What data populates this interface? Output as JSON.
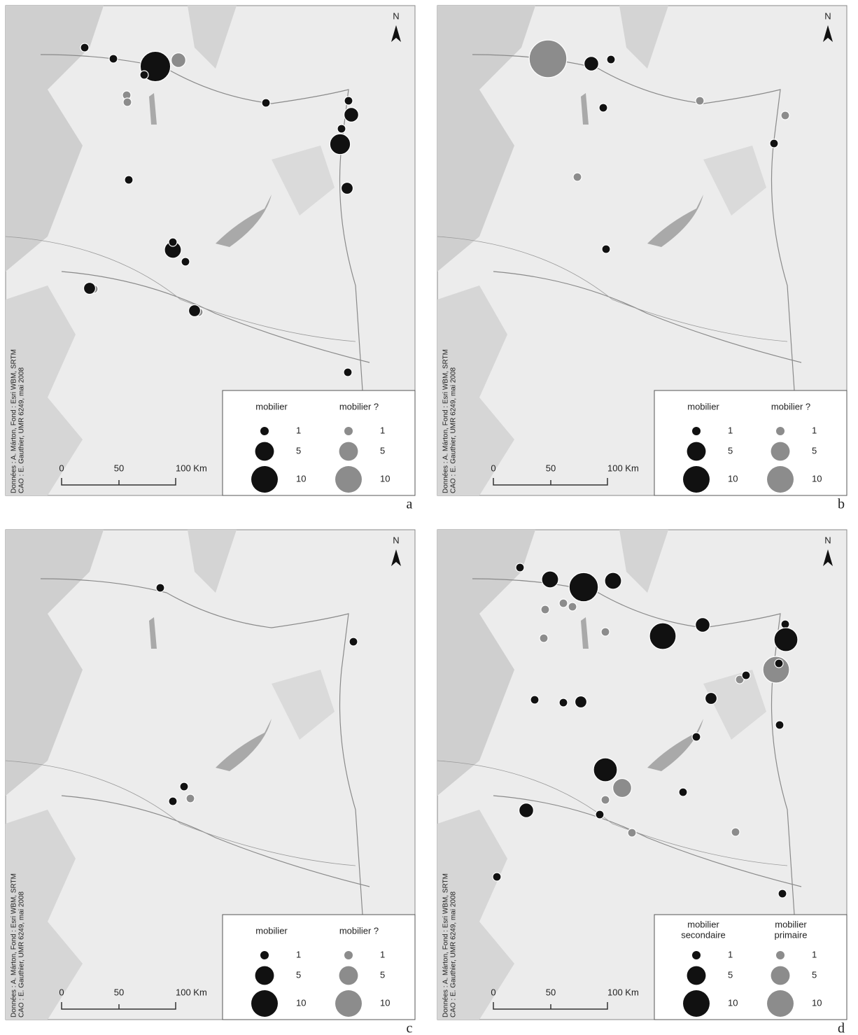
{
  "panels": [
    {
      "letter": "a",
      "north": "N",
      "credit": [
        "Données : A. Márton, Fond : Esri WBM, SRTM",
        "CAO : E. Gauthier, UMR 6249, mai 2008"
      ],
      "scale": [
        "0",
        "50",
        "100 Km"
      ],
      "legend": {
        "headings": [
          [
            "mobilier"
          ],
          [
            "mobilier ?"
          ]
        ],
        "sizes": [
          1,
          5,
          10
        ]
      },
      "sites": {
        "black": [
          1,
          1,
          13,
          1,
          1,
          1,
          3,
          1,
          6,
          2,
          1,
          4,
          1,
          1,
          2,
          2,
          1
        ],
        "grey": [
          3,
          1,
          1,
          1,
          1,
          1,
          1
        ]
      }
    },
    {
      "letter": "b",
      "north": "N",
      "credit": [
        "Données : A. Márton, Fond : Esri WBM, SRTM",
        "CAO : E. Gauthier, UMR 6249, mai 2008"
      ],
      "scale": [
        "0",
        "50",
        "100 Km"
      ],
      "legend": {
        "headings": [
          [
            "mobilier"
          ],
          [
            "mobilier ?"
          ]
        ],
        "sizes": [
          1,
          5,
          10
        ]
      },
      "sites": {
        "black": [
          3,
          1,
          1,
          1,
          1
        ],
        "grey": [
          20,
          1,
          1,
          1
        ]
      }
    },
    {
      "letter": "c",
      "north": "N",
      "credit": [
        "Données : A. Márton, Fond : Esri WBM, SRTM",
        "CAO : E. Gauthier, UMR 6249, mai 2008"
      ],
      "scale": [
        "0",
        "50",
        "100 Km"
      ],
      "legend": {
        "headings": [
          [
            "mobilier"
          ],
          [
            "mobilier ?"
          ]
        ],
        "sizes": [
          1,
          5,
          10
        ]
      },
      "sites": {
        "black": [
          1,
          1,
          1,
          1
        ],
        "grey": [
          1
        ]
      }
    },
    {
      "letter": "d",
      "north": "N",
      "credit": [
        "Données : A. Márton, Fond : Esri WBM, SRTM",
        "CAO : E. Gauthier, UMR 6249, mai 2008"
      ],
      "scale": [
        "0",
        "50",
        "100 Km"
      ],
      "legend": {
        "headings": [
          [
            "mobilier",
            "secondaire"
          ],
          [
            "mobilier",
            "primaire"
          ]
        ],
        "sizes": [
          1,
          5,
          10
        ]
      },
      "sites": {
        "black": [
          1,
          4,
          12,
          4,
          10,
          3,
          1,
          8,
          1,
          1,
          2,
          1,
          1,
          2,
          1,
          1,
          8,
          1,
          3,
          1,
          1,
          1
        ],
        "grey": [
          8,
          2,
          1,
          1,
          1,
          1,
          1,
          4,
          10,
          1,
          5,
          1,
          1,
          1,
          1
        ]
      }
    }
  ]
}
